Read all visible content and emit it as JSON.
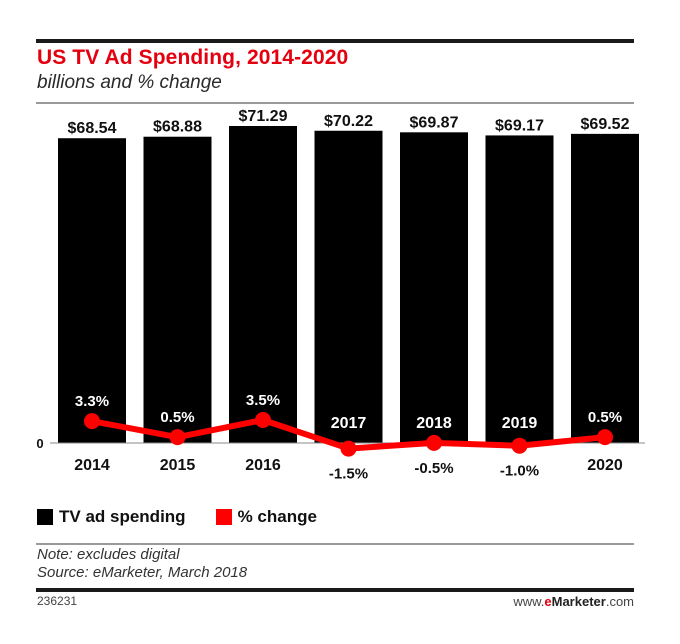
{
  "header": {
    "title": "US TV Ad Spending, 2014-2020",
    "subtitle": "billions and % change"
  },
  "colors": {
    "accent": "#e4000f",
    "bar": "#000000",
    "line": "#ff0000",
    "axis": "#888888"
  },
  "chart_data": {
    "type": "bar",
    "title": "US TV Ad Spending, 2014-2020",
    "subtitle": "billions and % change",
    "categories": [
      "2014",
      "2015",
      "2016",
      "2017",
      "2018",
      "2019",
      "2020"
    ],
    "series": [
      {
        "name": "TV ad spending",
        "type": "bar",
        "unit": "billions USD",
        "values": [
          68.54,
          68.88,
          71.29,
          70.22,
          69.87,
          69.17,
          69.52
        ],
        "labels": [
          "$68.54",
          "$68.88",
          "$71.29",
          "$70.22",
          "$69.87",
          "$69.17",
          "$69.52"
        ]
      },
      {
        "name": "% change",
        "type": "line",
        "unit": "percent",
        "values": [
          3.3,
          0.5,
          3.5,
          -1.5,
          -0.5,
          -1.0,
          0.5
        ],
        "labels": [
          "3.3%",
          "0.5%",
          "3.5%",
          "-1.5%",
          "-0.5%",
          "-1.0%",
          "0.5%"
        ]
      }
    ],
    "y_axis_tick": "0",
    "xlabel": "",
    "ylabel": "",
    "grid": false,
    "legend_position": "bottom-left"
  },
  "legend": [
    {
      "label": "TV ad spending",
      "color": "#000000"
    },
    {
      "label": "% change",
      "color": "#ff0000"
    }
  ],
  "footer": {
    "note": "Note: excludes digital",
    "source": "Source: eMarketer, March 2018",
    "chart_id": "236231",
    "brand_prefix": "www.",
    "brand_e": "e",
    "brand_name": "Marketer",
    "brand_suffix": ".com"
  }
}
